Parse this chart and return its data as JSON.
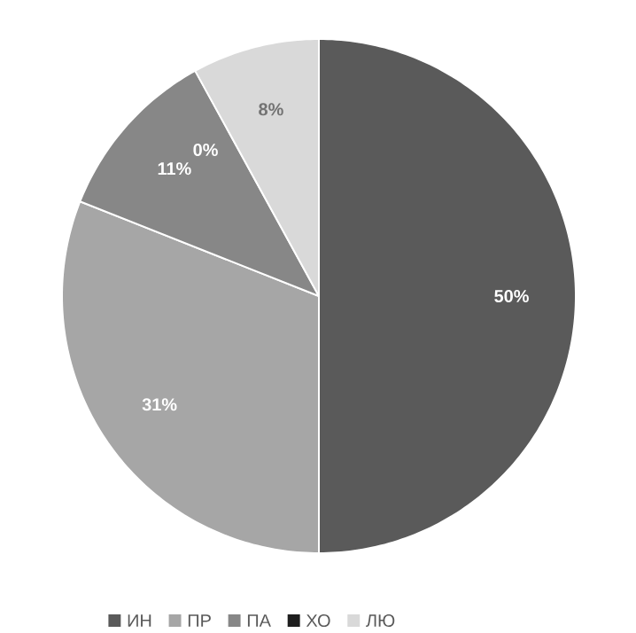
{
  "chart_data": {
    "type": "pie",
    "categories": [
      "ИН",
      "ПР",
      "ПА",
      "ХО",
      "ЛЮ"
    ],
    "values": [
      50,
      31,
      11,
      0,
      8
    ],
    "colors": [
      "#5a5a5a",
      "#a6a6a6",
      "#878787",
      "#1e1e1e",
      "#d9d9d9"
    ],
    "value_labels": [
      "50%",
      "31%",
      "11%",
      "0%",
      "8%"
    ],
    "legend": "bottom"
  }
}
